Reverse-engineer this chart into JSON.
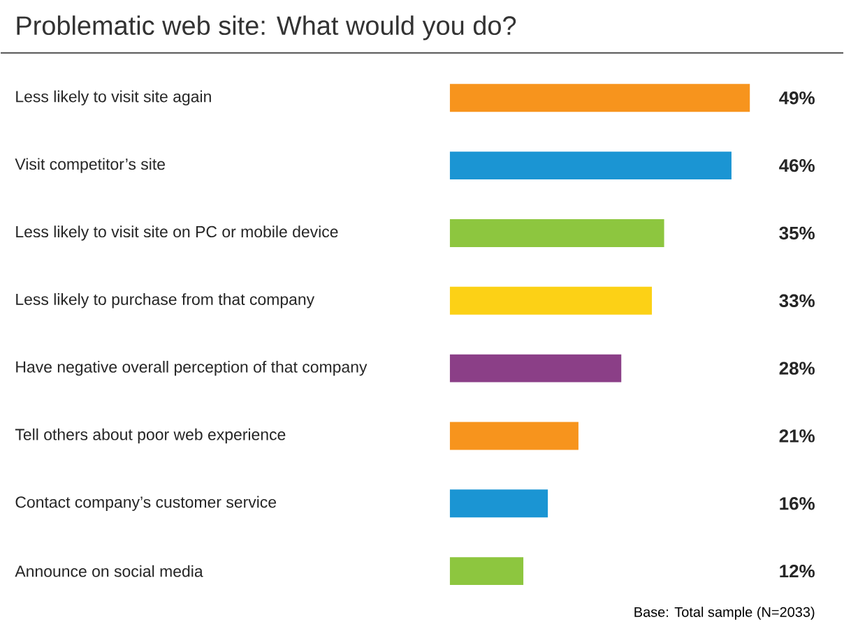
{
  "chart_data": {
    "type": "bar",
    "orientation": "horizontal",
    "title": "Problematic web site: What would you do?",
    "categories": [
      "Less likely to visit site again",
      "Visit competitor’s site",
      "Less likely to visit site on PC or mobile device",
      "Less likely to purchase from that company",
      "Have negative overall perception of that company",
      "Tell others about poor web experience",
      "Contact company’s customer service",
      "Announce on social media"
    ],
    "values": [
      49,
      46,
      35,
      33,
      28,
      21,
      16,
      12
    ],
    "colors": [
      "#f7941d",
      "#1b95d3",
      "#8dc63f",
      "#fcd116",
      "#8b3f87",
      "#f7941d",
      "#1b95d3",
      "#8dc63f"
    ],
    "value_labels": [
      "49%",
      "46%",
      "35%",
      "33%",
      "28%",
      "21%",
      "16%",
      "12%"
    ],
    "annotations": [
      "Base: Total sample (N=2033)"
    ]
  }
}
